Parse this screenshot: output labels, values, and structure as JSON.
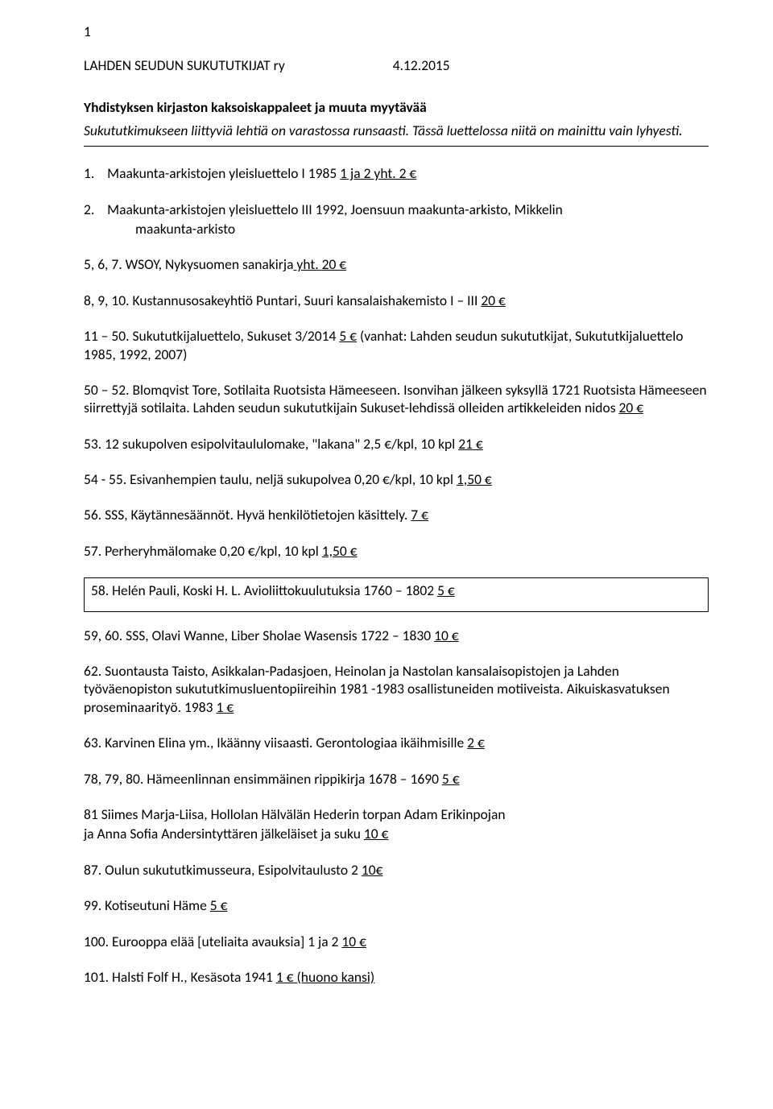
{
  "page_number": "1",
  "header": {
    "org": "LAHDEN SEUDUN SUKUTUTKIJAT ry",
    "date": "4.12.2015"
  },
  "subtitle": "Yhdistyksen kirjaston kaksoiskappaleet ja muuta myytävää",
  "intro": "Sukututkimukseen liittyviä lehtiä on varastossa runsaasti. Tässä luettelossa niitä on mainittu vain lyhyesti.",
  "item1": {
    "num": "1.",
    "pre": "Maakunta-arkistojen yleisluettelo I 1985 ",
    "u": "1 ja 2 yht. 2 €"
  },
  "item2": {
    "num": "2.",
    "line1": "Maakunta-arkistojen yleisluettelo III 1992, Joensuun maakunta-arkisto, Mikkelin",
    "line2": "maakunta-arkisto"
  },
  "item3": {
    "pre": "5, 6, 7. WSOY, Nykysuomen sanakirja",
    "mid": " yht. ",
    "u": "20 €"
  },
  "item4": {
    "pre": "8, 9, 10. Kustannusosakeyhtiö Puntari, Suuri kansalaishakemisto I – III ",
    "u": "20 €"
  },
  "item5": {
    "pre": "11 – 50. Sukututkijaluettelo, Sukuset 3/2014 ",
    "u": "5 €",
    "post": " (vanhat: Lahden seudun sukututkijat, Sukututkijaluettelo 1985, 1992, 2007)"
  },
  "item6": {
    "pre": "50 – 52. Blomqvist Tore, Sotilaita Ruotsista Hämeeseen. Isonvihan jälkeen syksyllä 1721 Ruotsista Hämeeseen siirrettyjä sotilaita. Lahden seudun sukututkijain Sukuset-lehdissä olleiden artikkeleiden nidos ",
    "u": "20 €"
  },
  "item7": {
    "pre": "53. 12 sukupolven esipolvitaululomake, \"lakana\" 2,5 €/kpl, 10 kpl ",
    "u": "21 €"
  },
  "item8": {
    "pre": "54 - 55. Esivanhempien taulu, neljä sukupolvea 0,20 €/kpl, 10 kpl ",
    "u": "1,50 €"
  },
  "item9": {
    "pre": "56. SSS, Käytännesäännöt. Hyvä henkilötietojen käsittely. ",
    "u": "7 €"
  },
  "item10": {
    "pre": "57. Perheryhmälomake 0,20 €/kpl, 10 kpl ",
    "u": "1,50 €"
  },
  "item11": {
    "pre": "58. Helén Pauli, Koski H. L. Avioliittokuulutuksia 1760 – 1802 ",
    "u": "5 €"
  },
  "item12": {
    "pre": "59, 60. SSS, Olavi Wanne, Liber Sholae Wasensis 1722 – 1830 ",
    "u": "10 €"
  },
  "item13": {
    "pre": "62. Suontausta Taisto,  Asikkalan-Padasjoen, Heinolan ja Nastolan kansalaisopistojen ja Lahden työväenopiston sukututkimusluentopiireihin 1981 -1983 osallistuneiden motiiveista. Aikuiskasvatuksen proseminaarityö.  1983 ",
    "u": "1 €"
  },
  "item14": {
    "pre": "63. Karvinen Elina ym., Ikäänny viisaasti. Gerontologiaa ikäihmisille ",
    "u": "2 €"
  },
  "item15": {
    "pre": "78, 79, 80. Hämeenlinnan ensimmäinen rippikirja 1678 – 1690 ",
    "u": "5 €"
  },
  "item16": {
    "line1": "81 Siimes Marja-Liisa, Hollolan Hälvälän Hederin torpan Adam Erikinpojan",
    "line2_pre": "ja Anna Sofia Andersintyttären jälkeläiset ja suku ",
    "line2_u": "10 €"
  },
  "item17": {
    "pre": "87. Oulun sukututkimusseura, Esipolvitaulusto 2 ",
    "u": "10€"
  },
  "item18": {
    "pre": "99. Kotiseutuni Häme ",
    "u": "5 €"
  },
  "item19": {
    "pre": "100. Eurooppa elää [uteliaita avauksia] 1 ja 2 ",
    "u": "10 €"
  },
  "item20": {
    "pre": "101. Halsti Folf H., Kesäsota 1941 ",
    "u": "1 € (huono kansi)"
  }
}
